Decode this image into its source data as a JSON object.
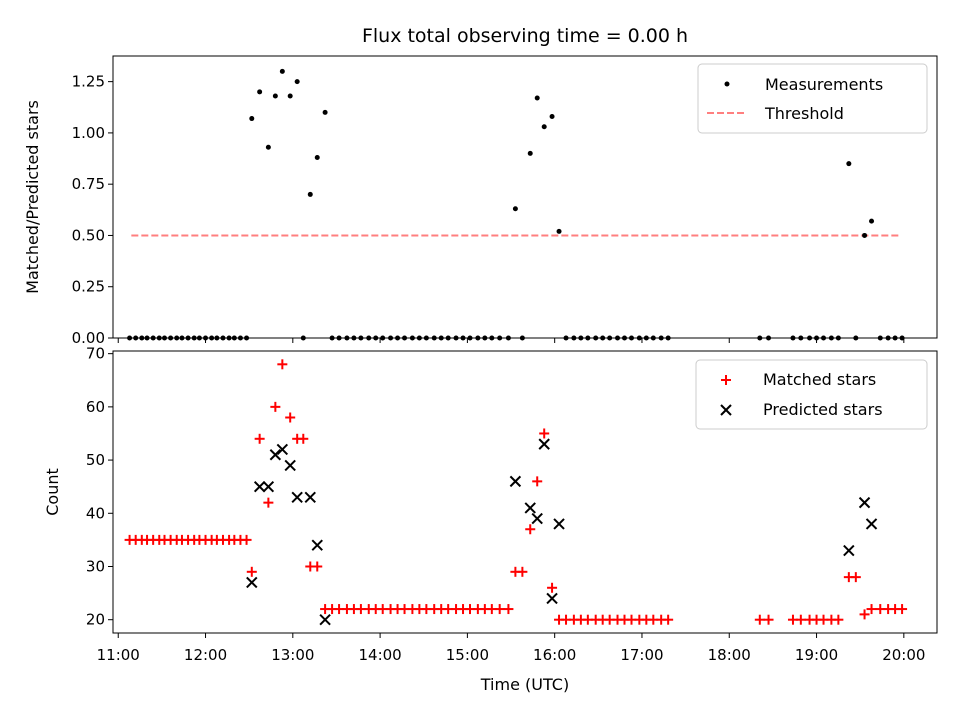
{
  "title": "Flux total observing time = 0.00 h",
  "colors": {
    "measure": "#000000",
    "threshold": "#ff7f7f",
    "matched": "#ff0000",
    "predicted": "#000000"
  },
  "chart_data": [
    {
      "type": "scatter",
      "ylabel": "Matched/Predicted stars",
      "xlim": [
        10.94,
        20.38
      ],
      "ylim": [
        0,
        1.375
      ],
      "yticks": [
        "0.00",
        "0.25",
        "0.50",
        "0.75",
        "1.00",
        "1.25"
      ],
      "ytick_values": [
        0,
        0.25,
        0.5,
        0.75,
        1.0,
        1.25
      ],
      "legend": {
        "position": "top-right",
        "entries": [
          "Measurements",
          "Threshold"
        ]
      },
      "threshold": {
        "name": "Threshold",
        "x": [
          11.15,
          19.97
        ],
        "y": 0.5
      },
      "series": [
        {
          "name": "Measurements",
          "x": [
            11.13,
            11.2,
            11.27,
            11.33,
            11.4,
            11.47,
            11.53,
            11.6,
            11.67,
            11.73,
            11.8,
            11.87,
            11.93,
            12.0,
            12.07,
            12.13,
            12.2,
            12.27,
            12.33,
            12.4,
            12.47,
            12.53,
            12.62,
            12.72,
            12.8,
            12.88,
            12.97,
            13.05,
            13.12,
            13.2,
            13.28,
            13.37,
            13.45,
            13.53,
            13.62,
            13.7,
            13.78,
            13.87,
            13.95,
            14.03,
            14.12,
            14.2,
            14.28,
            14.37,
            14.45,
            14.53,
            14.62,
            14.7,
            14.78,
            14.87,
            14.95,
            15.03,
            15.12,
            15.2,
            15.28,
            15.37,
            15.47,
            15.55,
            15.63,
            15.72,
            15.8,
            15.88,
            15.97,
            16.05,
            16.13,
            16.22,
            16.3,
            16.38,
            16.47,
            16.55,
            16.63,
            16.72,
            16.8,
            16.88,
            16.97,
            17.05,
            17.13,
            17.22,
            17.3,
            18.35,
            18.45,
            18.73,
            18.82,
            18.92,
            19.0,
            19.08,
            19.17,
            19.25,
            19.37,
            19.45,
            19.55,
            19.63,
            19.73,
            19.82,
            19.9,
            19.98
          ],
          "y": [
            0,
            0,
            0,
            0,
            0,
            0,
            0,
            0,
            0,
            0,
            0,
            0,
            0,
            0,
            0,
            0,
            0,
            0,
            0,
            0,
            0,
            1.07,
            1.2,
            0.93,
            1.18,
            1.3,
            1.18,
            1.25,
            0,
            0.7,
            0.88,
            1.1,
            0,
            0,
            0,
            0,
            0,
            0,
            0,
            0,
            0,
            0,
            0,
            0,
            0,
            0,
            0,
            0,
            0,
            0,
            0,
            0,
            0,
            0,
            0,
            0,
            0,
            0.63,
            0,
            0.9,
            1.17,
            1.03,
            1.08,
            0.52,
            0,
            0,
            0,
            0,
            0,
            0,
            0,
            0,
            0,
            0,
            0,
            0,
            0,
            0,
            0,
            0,
            0,
            0,
            0,
            0,
            0,
            0,
            0,
            0,
            0.85,
            0,
            0.5,
            0.57,
            0,
            0,
            0,
            0
          ]
        }
      ]
    },
    {
      "type": "scatter",
      "ylabel": "Count",
      "xlabel": "Time (UTC)",
      "xlim": [
        10.94,
        20.38
      ],
      "ylim": [
        17.5,
        70.5
      ],
      "xticks": [
        "11:00",
        "12:00",
        "13:00",
        "14:00",
        "15:00",
        "16:00",
        "17:00",
        "18:00",
        "19:00",
        "20:00"
      ],
      "xtick_values": [
        11,
        12,
        13,
        14,
        15,
        16,
        17,
        18,
        19,
        20
      ],
      "yticks": [
        "20",
        "30",
        "40",
        "50",
        "60",
        "70"
      ],
      "ytick_values": [
        20,
        30,
        40,
        50,
        60,
        70
      ],
      "legend": {
        "position": "top-right",
        "entries": [
          "Matched stars",
          "Predicted stars"
        ]
      },
      "series": [
        {
          "name": "Matched stars",
          "x": [
            11.13,
            11.2,
            11.27,
            11.33,
            11.4,
            11.47,
            11.53,
            11.6,
            11.67,
            11.73,
            11.8,
            11.87,
            11.93,
            12.0,
            12.07,
            12.13,
            12.2,
            12.27,
            12.33,
            12.4,
            12.47,
            12.53,
            12.62,
            12.72,
            12.8,
            12.88,
            12.97,
            13.05,
            13.12,
            13.2,
            13.28,
            13.37,
            13.45,
            13.53,
            13.62,
            13.7,
            13.78,
            13.87,
            13.95,
            14.03,
            14.12,
            14.2,
            14.28,
            14.37,
            14.45,
            14.53,
            14.62,
            14.7,
            14.78,
            14.87,
            14.95,
            15.03,
            15.12,
            15.2,
            15.28,
            15.37,
            15.47,
            15.55,
            15.63,
            15.72,
            15.8,
            15.88,
            15.97,
            16.05,
            16.13,
            16.22,
            16.3,
            16.38,
            16.47,
            16.55,
            16.63,
            16.72,
            16.8,
            16.88,
            16.97,
            17.05,
            17.13,
            17.22,
            17.3,
            18.35,
            18.45,
            18.73,
            18.82,
            18.92,
            19.0,
            19.08,
            19.17,
            19.25,
            19.37,
            19.45,
            19.55,
            19.63,
            19.73,
            19.82,
            19.9,
            19.98
          ],
          "y": [
            35,
            35,
            35,
            35,
            35,
            35,
            35,
            35,
            35,
            35,
            35,
            35,
            35,
            35,
            35,
            35,
            35,
            35,
            35,
            35,
            35,
            29,
            54,
            42,
            60,
            68,
            58,
            54,
            54,
            30,
            30,
            22,
            22,
            22,
            22,
            22,
            22,
            22,
            22,
            22,
            22,
            22,
            22,
            22,
            22,
            22,
            22,
            22,
            22,
            22,
            22,
            22,
            22,
            22,
            22,
            22,
            22,
            29,
            29,
            37,
            46,
            55,
            26,
            20,
            20,
            20,
            20,
            20,
            20,
            20,
            20,
            20,
            20,
            20,
            20,
            20,
            20,
            20,
            20,
            20,
            20,
            20,
            20,
            20,
            20,
            20,
            20,
            20,
            28,
            28,
            21,
            22,
            22,
            22,
            22,
            22
          ]
        },
        {
          "name": "Predicted stars",
          "x": [
            12.53,
            12.62,
            12.72,
            12.8,
            12.88,
            12.97,
            13.05,
            13.2,
            13.28,
            13.37,
            15.55,
            15.72,
            15.8,
            15.88,
            15.97,
            16.05,
            19.37,
            19.55,
            19.63
          ],
          "y": [
            27,
            45,
            45,
            51,
            52,
            49,
            43,
            43,
            34,
            20,
            46,
            41,
            39,
            53,
            24,
            38,
            33,
            42,
            38
          ]
        }
      ]
    }
  ]
}
